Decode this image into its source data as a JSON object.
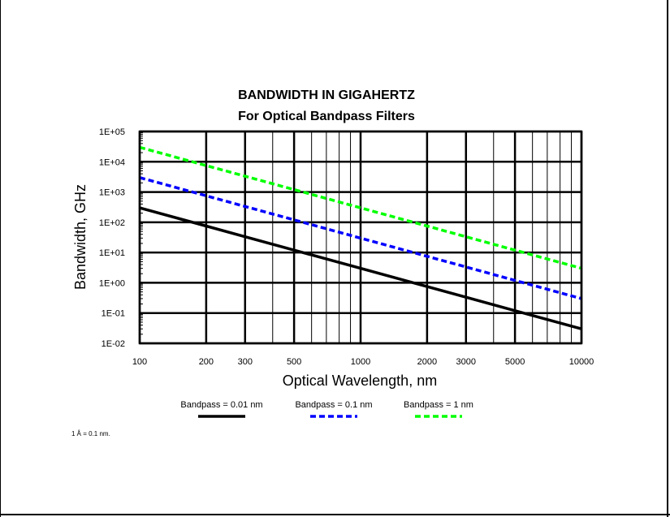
{
  "chart_data": {
    "type": "line",
    "title": "BANDWIDTH IN GIGAHERTZ",
    "subtitle": "For Optical Bandpass Filters",
    "xlabel": "Optical Wavelength, nm",
    "ylabel": "Bandwidth, GHz",
    "x_scale": "log",
    "y_scale": "log",
    "xlim": [
      100,
      10000
    ],
    "ylim": [
      0.01,
      100000
    ],
    "x_tick_labels": [
      "100",
      "200",
      "300",
      "500",
      "1000",
      "2000",
      "3000",
      "5000",
      "10000"
    ],
    "x_ticks": [
      100,
      200,
      300,
      500,
      1000,
      2000,
      3000,
      5000,
      10000
    ],
    "x_minor_ticks": [
      400,
      600,
      700,
      800,
      900,
      4000,
      6000,
      7000,
      8000,
      9000
    ],
    "y_tick_labels": [
      "1E+05",
      "1E+04",
      "1E+03",
      "1E+02",
      "1E+01",
      "1E+00",
      "1E-01",
      "1E-02"
    ],
    "y_ticks": [
      100000,
      10000,
      1000,
      100,
      10,
      1,
      0.1,
      0.01
    ],
    "grid": true,
    "legend_position": "bottom",
    "series": [
      {
        "name": "Bandpass = 0.01 nm",
        "color": "#000000",
        "style": "solid",
        "x": [
          100,
          200,
          300,
          500,
          1000,
          2000,
          3000,
          5000,
          10000
        ],
        "y": [
          299.8,
          74.95,
          33.31,
          11.99,
          2.998,
          0.7495,
          0.3331,
          0.1199,
          0.02998
        ]
      },
      {
        "name": "Bandpass = 0.1 nm",
        "color": "#0000ff",
        "style": "dashed",
        "x": [
          100,
          200,
          300,
          500,
          1000,
          2000,
          3000,
          5000,
          10000
        ],
        "y": [
          2998,
          749.5,
          333.1,
          119.9,
          29.98,
          7.495,
          3.331,
          1.199,
          0.2998
        ]
      },
      {
        "name": "Bandpass = 1 nm",
        "color": "#00ff00",
        "style": "dashed",
        "x": [
          100,
          200,
          300,
          500,
          1000,
          2000,
          3000,
          5000,
          10000
        ],
        "y": [
          29980,
          7495,
          3331,
          1199,
          299.8,
          74.95,
          33.31,
          11.99,
          2.998
        ]
      }
    ],
    "annotations": [
      "1 Å = 0.1 nm."
    ]
  }
}
